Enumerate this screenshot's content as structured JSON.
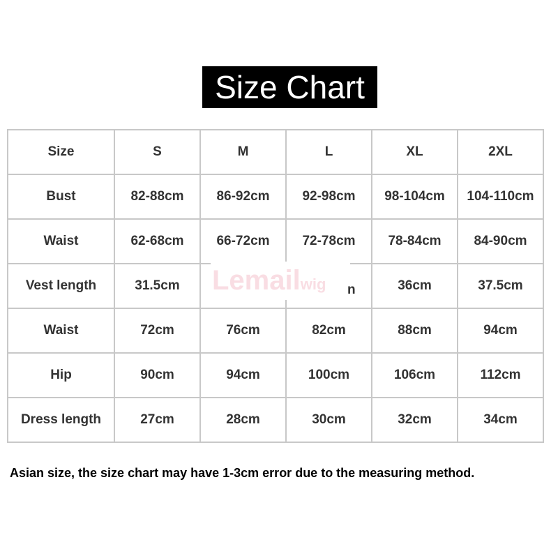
{
  "title": "Size Chart",
  "table": {
    "header": [
      "Size",
      "S",
      "M",
      "L",
      "XL",
      "2XL"
    ],
    "rows": [
      [
        "Bust",
        "82-88cm",
        "86-92cm",
        "92-98cm",
        "98-104cm",
        "104-110cm"
      ],
      [
        "Waist",
        "62-68cm",
        "66-72cm",
        "72-78cm",
        "78-84cm",
        "84-90cm"
      ],
      [
        "Vest length",
        "31.5cm",
        "",
        "",
        "36cm",
        "37.5cm"
      ],
      [
        "Waist",
        "72cm",
        "76cm",
        "82cm",
        "88cm",
        "94cm"
      ],
      [
        "Hip",
        "90cm",
        "94cm",
        "100cm",
        "106cm",
        "112cm"
      ],
      [
        "Dress length",
        "27cm",
        "28cm",
        "30cm",
        "32cm",
        "34cm"
      ]
    ],
    "obscured_fragment": "n"
  },
  "watermark": {
    "text": "Lemail",
    "suffix": "wig",
    "color": "#f9dde3"
  },
  "note": "Asian size, the size chart may have 1-3cm error due to the measuring method."
}
